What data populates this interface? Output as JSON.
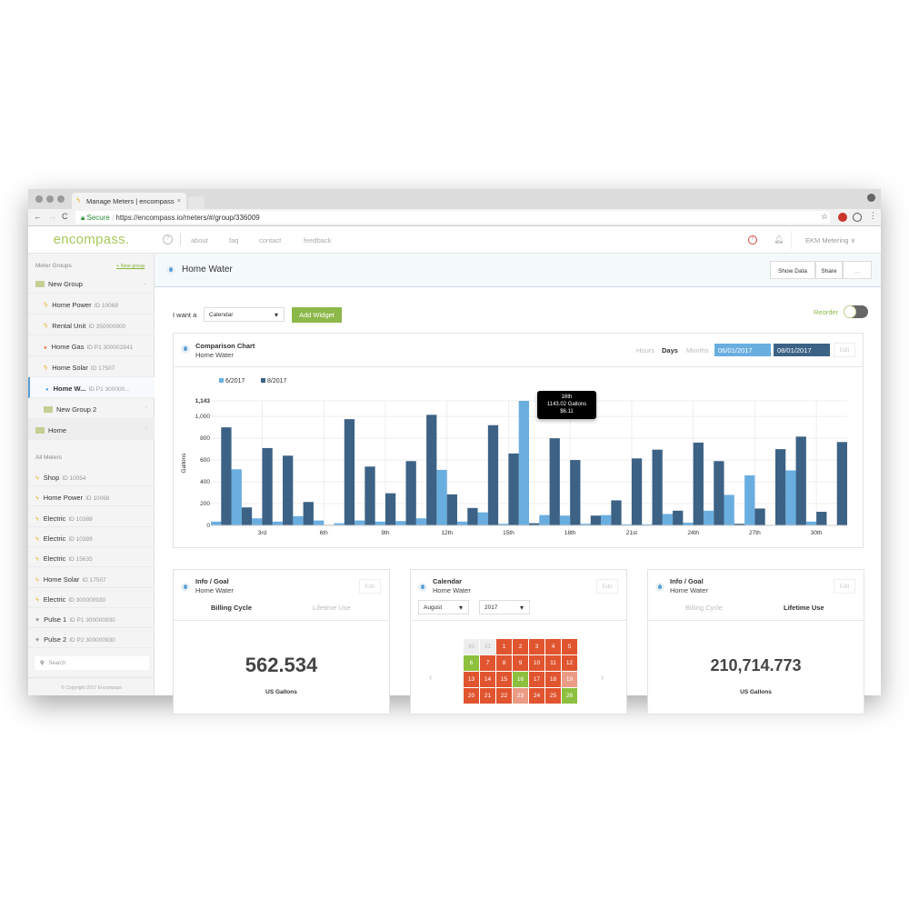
{
  "browser": {
    "tab_title": "Manage Meters | encompass",
    "secure_label": "Secure",
    "url": "https://encompass.io/meters/#/group/336009"
  },
  "app": {
    "logo": "encompass.",
    "nav": [
      "about",
      "faq",
      "contact",
      "feedback"
    ],
    "account": "EKM Metering"
  },
  "sidebar": {
    "groups_heading": "Meter Groups",
    "new_group_link": "+ New group",
    "group_items": [
      {
        "kind": "folder",
        "name": "New Group",
        "id": "",
        "icon": "folder-icon"
      },
      {
        "kind": "meter",
        "name": "Home Power",
        "id": "ID 10068",
        "icon": "bolt-icon"
      },
      {
        "kind": "meter",
        "name": "Rental Unit",
        "id": "ID 350000900",
        "icon": "bolt-icon"
      },
      {
        "kind": "meter",
        "name": "Home Gas",
        "id": "ID P1 300002841",
        "icon": "flame-icon"
      },
      {
        "kind": "meter",
        "name": "Home Solar",
        "id": "ID 17507",
        "icon": "bolt-icon"
      },
      {
        "kind": "meter",
        "name": "Home W...",
        "id": "ID P1 300000...",
        "icon": "water-drop-icon",
        "active": true
      },
      {
        "kind": "folder",
        "name": "New Group 2",
        "id": "",
        "icon": "folder-icon"
      },
      {
        "kind": "folder",
        "name": "Home",
        "id": "",
        "icon": "folder-icon"
      }
    ],
    "all_heading": "All Meters",
    "all_items": [
      {
        "name": "Shop",
        "id": "ID 10054",
        "icon": "bolt-icon"
      },
      {
        "name": "Home Power",
        "id": "ID 10068",
        "icon": "bolt-icon"
      },
      {
        "name": "Electric",
        "id": "ID 10388",
        "icon": "bolt-icon"
      },
      {
        "name": "Electric",
        "id": "ID 10389",
        "icon": "bolt-icon"
      },
      {
        "name": "Electric",
        "id": "ID 15635",
        "icon": "bolt-icon"
      },
      {
        "name": "Home Solar",
        "id": "ID 17507",
        "icon": "bolt-icon"
      },
      {
        "name": "Electric",
        "id": "ID 300000930",
        "icon": "bolt-icon"
      },
      {
        "name": "Pulse 1",
        "id": "ID P1 300000930",
        "icon": "pulse-icon"
      },
      {
        "name": "Pulse 2",
        "id": "ID P2 300000930",
        "icon": "pulse-icon"
      }
    ],
    "search_placeholder": "Search",
    "copyright": "© Copyright 2017 Encompass"
  },
  "page": {
    "title": "Home Water",
    "show_data": "Show Data",
    "share": "Share",
    "more": "...",
    "i_want_a": "I want a",
    "widget_select": "Calendar",
    "add_widget": "Add Widget",
    "reorder": "Reorder"
  },
  "comparison": {
    "title": "Comparison Chart",
    "subtitle": "Home Water",
    "ranges": [
      "Hours",
      "Days",
      "Months"
    ],
    "active_range": "Days",
    "date1": "06/01/2017",
    "date2": "08/01/2017",
    "edit": "Edit",
    "tooltip": {
      "day": "16th",
      "value": "1143.02 Gallons",
      "cost": "$6.11"
    }
  },
  "chart_data": {
    "type": "bar",
    "ylabel": "Gallons",
    "ylim": [
      0,
      1143
    ],
    "yticks": [
      0,
      200,
      400,
      600,
      800,
      1000,
      1143
    ],
    "ytick_labels": [
      "0",
      "200",
      "400",
      "600",
      "800",
      "1,000",
      "1,143"
    ],
    "x": [
      1,
      2,
      3,
      4,
      5,
      6,
      7,
      8,
      9,
      10,
      11,
      12,
      13,
      14,
      15,
      16,
      17,
      18,
      19,
      20,
      21,
      22,
      23,
      24,
      25,
      26,
      27,
      28,
      29,
      30,
      31
    ],
    "xtick_days": [
      3,
      6,
      9,
      12,
      15,
      18,
      21,
      24,
      27,
      30
    ],
    "xtick_labels": [
      "3rd",
      "6th",
      "9th",
      "12th",
      "15th",
      "18th",
      "21st",
      "24th",
      "27th",
      "30th"
    ],
    "legend": "top-left",
    "grid": true,
    "series": [
      {
        "name": "6/2017",
        "color": "#6aaee0",
        "values": [
          35,
          515,
          65,
          35,
          85,
          45,
          20,
          45,
          35,
          40,
          65,
          510,
          35,
          120,
          15,
          1143,
          95,
          90,
          15,
          95,
          10,
          10,
          105,
          25,
          135,
          280,
          460,
          5,
          505,
          35,
          null
        ]
      },
      {
        "name": "8/2017",
        "color": "#3c6285",
        "values": [
          900,
          165,
          710,
          640,
          215,
          5,
          975,
          540,
          295,
          590,
          1015,
          285,
          160,
          920,
          660,
          20,
          800,
          600,
          90,
          230,
          615,
          695,
          135,
          760,
          590,
          15,
          155,
          700,
          815,
          125,
          765
        ]
      }
    ]
  },
  "info1": {
    "title": "Info / Goal",
    "subtitle": "Home Water",
    "edit": "Edit",
    "tab_active": "Billing Cycle",
    "tab_other": "Lifetime Use",
    "value": "562.534",
    "unit": "US Gallons"
  },
  "calendar": {
    "title": "Calendar",
    "subtitle": "Home Water",
    "edit": "Edit",
    "month": "August",
    "year": "2017",
    "colors": {
      "high": "#e0552f",
      "low": "#8dc03e",
      "mid": "#eb9b86",
      "out": "#eeeeee"
    },
    "rows": [
      [
        {
          "d": "30",
          "s": "out"
        },
        {
          "d": "31",
          "s": "out"
        },
        {
          "d": "1",
          "s": "high"
        },
        {
          "d": "2",
          "s": "high"
        },
        {
          "d": "3",
          "s": "high"
        },
        {
          "d": "4",
          "s": "high"
        },
        {
          "d": "5",
          "s": "high"
        }
      ],
      [
        {
          "d": "6",
          "s": "low"
        },
        {
          "d": "7",
          "s": "high"
        },
        {
          "d": "8",
          "s": "high"
        },
        {
          "d": "9",
          "s": "high"
        },
        {
          "d": "10",
          "s": "high"
        },
        {
          "d": "11",
          "s": "high"
        },
        {
          "d": "12",
          "s": "high"
        }
      ],
      [
        {
          "d": "13",
          "s": "high"
        },
        {
          "d": "14",
          "s": "high"
        },
        {
          "d": "15",
          "s": "high"
        },
        {
          "d": "16",
          "s": "low"
        },
        {
          "d": "17",
          "s": "high"
        },
        {
          "d": "18",
          "s": "high"
        },
        {
          "d": "19",
          "s": "mid"
        }
      ],
      [
        {
          "d": "20",
          "s": "high"
        },
        {
          "d": "21",
          "s": "high"
        },
        {
          "d": "22",
          "s": "high"
        },
        {
          "d": "23",
          "s": "mid"
        },
        {
          "d": "24",
          "s": "high"
        },
        {
          "d": "25",
          "s": "high"
        },
        {
          "d": "26",
          "s": "low"
        }
      ]
    ]
  },
  "info2": {
    "title": "Info / Goal",
    "subtitle": "Home Water",
    "edit": "Edit",
    "tab_other": "Billing Cycle",
    "tab_active": "Lifetime Use",
    "value": "210,714.773",
    "unit": "US Gallons"
  }
}
